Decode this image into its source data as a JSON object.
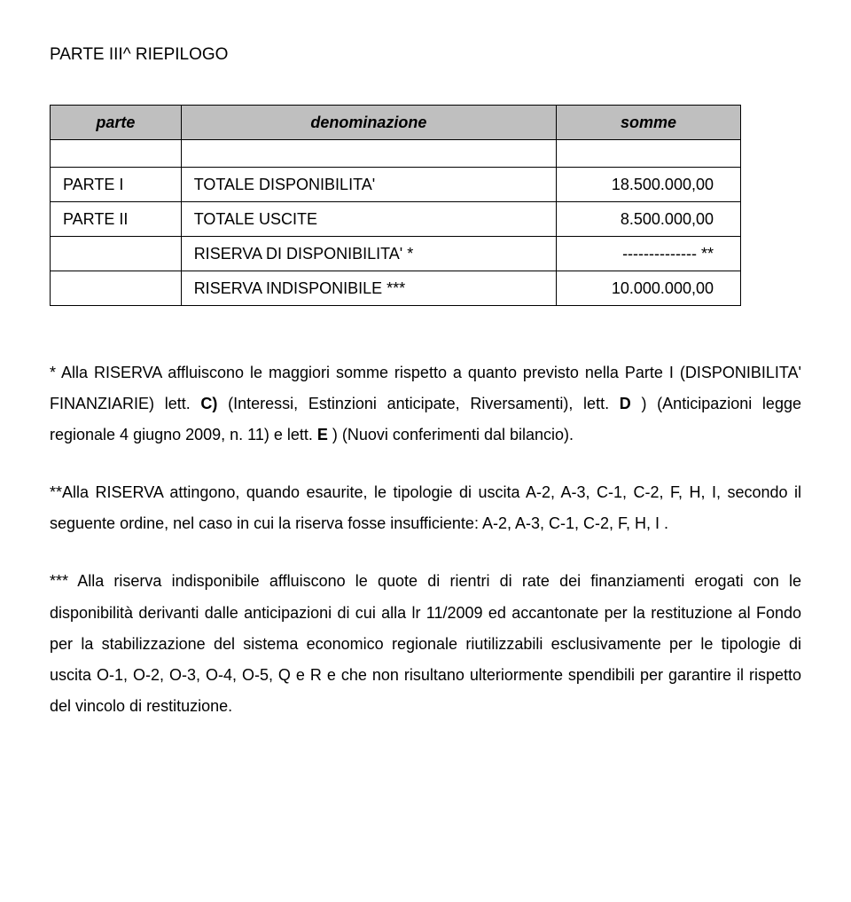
{
  "title": "PARTE III^ RIEPILOGO",
  "table": {
    "headers": [
      "parte",
      "denominazione",
      "somme"
    ],
    "rows": [
      [
        "PARTE I",
        "TOTALE DISPONIBILITA'",
        "18.500.000,00"
      ],
      [
        "PARTE II",
        "TOTALE USCITE",
        "8.500.000,00"
      ],
      [
        "",
        "RISERVA DI DISPONIBILITA' *",
        "-------------- **"
      ],
      [
        "",
        "RISERVA INDISPONIBILE ***",
        "10.000.000,00"
      ]
    ]
  },
  "note1": {
    "prefix": "* Alla RISERVA affluiscono le maggiori somme rispetto a quanto previsto nella Parte I (DISPONIBILITA' FINANZIARIE) lett. ",
    "c_label": "C)",
    "c_text": " (Interessi, Estinzioni anticipate, Riversamenti), lett. ",
    "d_label": "D",
    "d_text": ") (Anticipazioni legge regionale 4 giugno 2009, n. 11) e lett. ",
    "e_label": "E",
    "e_text": ") (Nuovi conferimenti dal bilancio)."
  },
  "note2": "**Alla RISERVA attingono, quando esaurite, le tipologie di uscita A-2, A-3, C-1, C-2, F, H, I, secondo il seguente ordine, nel caso in cui la riserva fosse insufficiente: A-2, A-3, C-1, C-2, F, H,  I .",
  "note3": "*** Alla riserva indisponibile affluiscono le quote di rientri di rate dei finanziamenti erogati con le disponibilità derivanti dalle anticipazioni di cui alla lr 11/2009 ed accantonate per la restituzione al Fondo per la stabilizzazione del sistema economico regionale riutilizzabili esclusivamente per le tipologie di uscita O-1, O-2, O-3, O-4, O-5, Q e R e che non risultano ulteriormente spendibili per garantire il rispetto del vincolo di restituzione."
}
